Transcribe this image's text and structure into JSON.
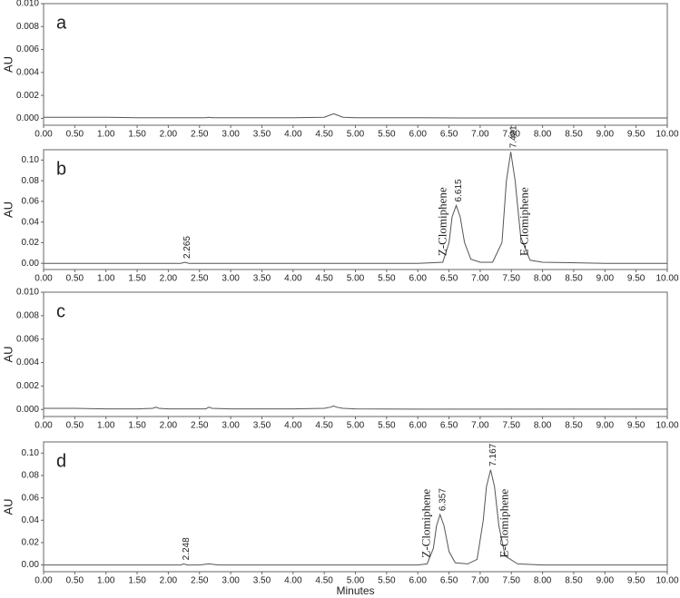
{
  "chart_data": [
    {
      "type": "line",
      "panel": "a",
      "y_label": "AU",
      "color": "#555",
      "x": [
        0,
        0.5,
        1,
        1.5,
        2,
        2.5,
        2.6,
        2.65,
        2.7,
        3,
        3.5,
        4,
        4.5,
        4.6,
        4.65,
        4.7,
        4.8,
        5,
        6,
        7,
        8,
        9,
        10
      ],
      "values": [
        0.0001,
        0.0001,
        0.0001,
        5e-05,
        5e-05,
        5e-05,
        5e-05,
        0.0001,
        5e-05,
        5e-05,
        5e-05,
        5e-05,
        0.0001,
        0.0003,
        0.0004,
        0.0003,
        0.0001,
        5e-05,
        5e-05,
        3e-05,
        3e-05,
        3e-05,
        3e-05
      ],
      "xlim": [
        0,
        10
      ],
      "xticks": [
        {
          "value": 0,
          "label": "0.00"
        },
        {
          "value": 0.5,
          "label": "0.50"
        },
        {
          "value": 1,
          "label": "1.00"
        },
        {
          "value": 1.5,
          "label": "1.50"
        },
        {
          "value": 2,
          "label": "2.00"
        },
        {
          "value": 2.5,
          "label": "2.50"
        },
        {
          "value": 3,
          "label": "3.00"
        },
        {
          "value": 3.5,
          "label": "3.50"
        },
        {
          "value": 4,
          "label": "4.00"
        },
        {
          "value": 4.5,
          "label": "4.50"
        },
        {
          "value": 5,
          "label": "5.00"
        },
        {
          "value": 5.5,
          "label": "5.50"
        },
        {
          "value": 6,
          "label": "6.00"
        },
        {
          "value": 6.5,
          "label": "6.50"
        },
        {
          "value": 7,
          "label": "7.00"
        },
        {
          "value": 7.5,
          "label": "7.50"
        },
        {
          "value": 8,
          "label": "8.00"
        },
        {
          "value": 8.5,
          "label": "8.50"
        },
        {
          "value": 9,
          "label": "9.00"
        },
        {
          "value": 9.5,
          "label": "9.50"
        },
        {
          "value": 10,
          "label": "10.00"
        }
      ],
      "ylim": [
        -0.0006,
        0.01
      ],
      "yticks": [
        {
          "value": 0,
          "label": "0.000"
        },
        {
          "value": 0.002,
          "label": "0.002"
        },
        {
          "value": 0.004,
          "label": "0.004"
        },
        {
          "value": 0.006,
          "label": "0.006"
        },
        {
          "value": 0.008,
          "label": "0.008"
        },
        {
          "value": 0.01,
          "label": "0.010"
        }
      ]
    },
    {
      "type": "line",
      "panel": "b",
      "y_label": "AU",
      "color": "#555",
      "x": [
        0,
        1,
        2,
        2.2,
        2.265,
        2.33,
        2.5,
        3,
        4,
        5,
        6,
        6.4,
        6.5,
        6.55,
        6.615,
        6.68,
        6.75,
        6.85,
        7,
        7.2,
        7.35,
        7.42,
        7.491,
        7.56,
        7.65,
        7.8,
        8,
        9,
        10
      ],
      "values": [
        0,
        0,
        0,
        0,
        0.001,
        0,
        0,
        0,
        0,
        0,
        0,
        0.001,
        0.02,
        0.045,
        0.056,
        0.045,
        0.02,
        0.004,
        0.001,
        0.001,
        0.02,
        0.08,
        0.108,
        0.08,
        0.025,
        0.003,
        0.001,
        0,
        0
      ],
      "xlim": [
        0,
        10
      ],
      "xticks": [
        {
          "value": 0,
          "label": "0.00"
        },
        {
          "value": 0.5,
          "label": "0.50"
        },
        {
          "value": 1,
          "label": "1.00"
        },
        {
          "value": 1.5,
          "label": "1.50"
        },
        {
          "value": 2,
          "label": "2.00"
        },
        {
          "value": 2.5,
          "label": "2.50"
        },
        {
          "value": 3,
          "label": "3.00"
        },
        {
          "value": 3.5,
          "label": "3.50"
        },
        {
          "value": 4,
          "label": "4.00"
        },
        {
          "value": 4.5,
          "label": "4.50"
        },
        {
          "value": 5,
          "label": "5.00"
        },
        {
          "value": 5.5,
          "label": "5.50"
        },
        {
          "value": 6,
          "label": "6.00"
        },
        {
          "value": 6.5,
          "label": "6.50"
        },
        {
          "value": 7,
          "label": "7.00"
        },
        {
          "value": 7.5,
          "label": "7.50"
        },
        {
          "value": 8,
          "label": "8.00"
        },
        {
          "value": 8.5,
          "label": "8.50"
        },
        {
          "value": 9,
          "label": "9.00"
        },
        {
          "value": 9.5,
          "label": "9.50"
        },
        {
          "value": 10,
          "label": "10.00"
        }
      ],
      "ylim": [
        -0.006,
        0.11
      ],
      "yticks": [
        {
          "value": 0,
          "label": "0.00"
        },
        {
          "value": 0.02,
          "label": "0.02"
        },
        {
          "value": 0.04,
          "label": "0.04"
        },
        {
          "value": 0.06,
          "label": "0.06"
        },
        {
          "value": 0.08,
          "label": "0.08"
        },
        {
          "value": 0.1,
          "label": "0.10"
        }
      ],
      "peaks": [
        {
          "value": 2.265,
          "label": "2.265"
        },
        {
          "value": 6.615,
          "label": "6.615",
          "compound": "Z-Clomiphene"
        },
        {
          "value": 7.491,
          "label": "7.491",
          "compound": "E-Clomiphene"
        }
      ]
    },
    {
      "type": "line",
      "panel": "c",
      "y_label": "AU",
      "color": "#555",
      "x": [
        0,
        0.5,
        1,
        1.5,
        1.75,
        1.8,
        1.85,
        2,
        2.5,
        2.6,
        2.65,
        2.7,
        3,
        3.5,
        4,
        4.5,
        4.6,
        4.65,
        4.7,
        4.8,
        5,
        6,
        7,
        8,
        9,
        10
      ],
      "values": [
        0.0001,
        0.0001,
        5e-05,
        5e-05,
        0.0001,
        0.0002,
        0.0001,
        5e-05,
        5e-05,
        5e-05,
        0.0002,
        0.0001,
        5e-05,
        5e-05,
        5e-05,
        0.0001,
        0.0002,
        0.0003,
        0.0002,
        0.0001,
        5e-05,
        3e-05,
        3e-05,
        3e-05,
        3e-05,
        3e-05
      ],
      "xlim": [
        0,
        10
      ],
      "xticks": [
        {
          "value": 0,
          "label": "0.00"
        },
        {
          "value": 0.5,
          "label": "0.50"
        },
        {
          "value": 1,
          "label": "1.00"
        },
        {
          "value": 1.5,
          "label": "1.50"
        },
        {
          "value": 2,
          "label": "2.00"
        },
        {
          "value": 2.5,
          "label": "2.50"
        },
        {
          "value": 3,
          "label": "3.00"
        },
        {
          "value": 3.5,
          "label": "3.50"
        },
        {
          "value": 4,
          "label": "4.00"
        },
        {
          "value": 4.5,
          "label": "4.50"
        },
        {
          "value": 5,
          "label": "5.00"
        },
        {
          "value": 5.5,
          "label": "5.50"
        },
        {
          "value": 6,
          "label": "6.00"
        },
        {
          "value": 6.5,
          "label": "6.50"
        },
        {
          "value": 7,
          "label": "7.00"
        },
        {
          "value": 7.5,
          "label": "7.50"
        },
        {
          "value": 8,
          "label": "8.00"
        },
        {
          "value": 8.5,
          "label": "8.50"
        },
        {
          "value": 9,
          "label": "9.00"
        },
        {
          "value": 9.5,
          "label": "9.50"
        },
        {
          "value": 10,
          "label": "10.00"
        }
      ],
      "ylim": [
        -0.0006,
        0.01
      ],
      "yticks": [
        {
          "value": 0,
          "label": "0.000"
        },
        {
          "value": 0.002,
          "label": "0.002"
        },
        {
          "value": 0.004,
          "label": "0.004"
        },
        {
          "value": 0.006,
          "label": "0.006"
        },
        {
          "value": 0.008,
          "label": "0.008"
        },
        {
          "value": 0.01,
          "label": "0.010"
        }
      ]
    },
    {
      "type": "line",
      "panel": "d",
      "y_label": "AU",
      "x_label": "Minutes",
      "color": "#555",
      "x": [
        0,
        1,
        2,
        2.2,
        2.248,
        2.3,
        2.5,
        2.65,
        2.8,
        4,
        5,
        6,
        6.15,
        6.25,
        6.3,
        6.357,
        6.42,
        6.5,
        6.6,
        6.8,
        6.95,
        7.05,
        7.1,
        7.167,
        7.23,
        7.3,
        7.4,
        7.6,
        8,
        9,
        10
      ],
      "values": [
        0,
        0,
        0,
        0,
        0.001,
        0,
        0,
        0.001,
        0,
        0,
        0,
        0,
        0.001,
        0.015,
        0.035,
        0.045,
        0.035,
        0.012,
        0.002,
        0.001,
        0.005,
        0.04,
        0.07,
        0.085,
        0.07,
        0.035,
        0.008,
        0.001,
        0,
        0,
        0
      ],
      "xlim": [
        0,
        10
      ],
      "xticks": [
        {
          "value": 0,
          "label": "0.00"
        },
        {
          "value": 0.5,
          "label": "0.50"
        },
        {
          "value": 1,
          "label": "1.00"
        },
        {
          "value": 1.5,
          "label": "1.50"
        },
        {
          "value": 2,
          "label": "2.00"
        },
        {
          "value": 2.5,
          "label": "2.50"
        },
        {
          "value": 3,
          "label": "3.00"
        },
        {
          "value": 3.5,
          "label": "3.50"
        },
        {
          "value": 4,
          "label": "4.00"
        },
        {
          "value": 4.5,
          "label": "4.50"
        },
        {
          "value": 5,
          "label": "5.00"
        },
        {
          "value": 5.5,
          "label": "5.50"
        },
        {
          "value": 6,
          "label": "6.00"
        },
        {
          "value": 6.5,
          "label": "6.50"
        },
        {
          "value": 7,
          "label": "7.00"
        },
        {
          "value": 7.5,
          "label": "7.50"
        },
        {
          "value": 8,
          "label": "8.00"
        },
        {
          "value": 8.5,
          "label": "8.50"
        },
        {
          "value": 9,
          "label": "9.00"
        },
        {
          "value": 9.5,
          "label": "9.50"
        },
        {
          "value": 10,
          "label": "10.00"
        }
      ],
      "ylim": [
        -0.006,
        0.11
      ],
      "yticks": [
        {
          "value": 0,
          "label": "0.00"
        },
        {
          "value": 0.02,
          "label": "0.02"
        },
        {
          "value": 0.04,
          "label": "0.04"
        },
        {
          "value": 0.06,
          "label": "0.06"
        },
        {
          "value": 0.08,
          "label": "0.08"
        },
        {
          "value": 0.1,
          "label": "0.10"
        }
      ],
      "peaks": [
        {
          "value": 2.248,
          "label": "2.248"
        },
        {
          "value": 6.357,
          "label": "6.357",
          "compound": "Z-Clomiphene"
        },
        {
          "value": 7.167,
          "label": "7.167",
          "compound": "E-Clomiphene"
        }
      ]
    }
  ]
}
